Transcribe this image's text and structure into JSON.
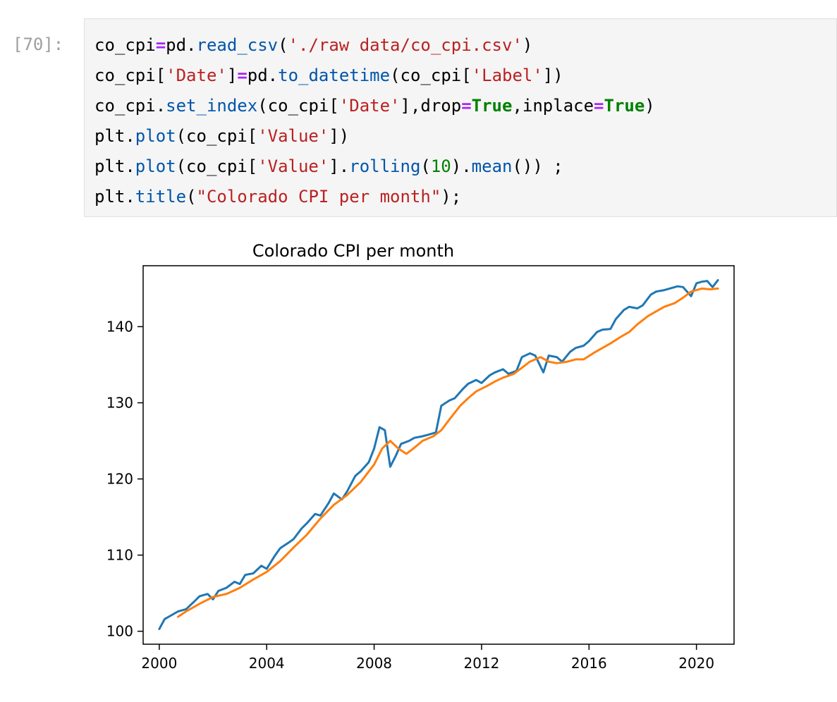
{
  "cell": {
    "prompt": "[70]:",
    "code_lines": [
      [
        {
          "t": "co_cpi",
          "c": ""
        },
        {
          "t": "=",
          "c": "op"
        },
        {
          "t": "pd.",
          "c": ""
        },
        {
          "t": "read_csv",
          "c": "fn"
        },
        {
          "t": "(",
          "c": ""
        },
        {
          "t": "'./raw data/co_cpi.csv'",
          "c": "str"
        },
        {
          "t": ")",
          "c": ""
        }
      ],
      [
        {
          "t": "co_cpi[",
          "c": ""
        },
        {
          "t": "'Date'",
          "c": "str"
        },
        {
          "t": "]",
          "c": ""
        },
        {
          "t": "=",
          "c": "op"
        },
        {
          "t": "pd.",
          "c": ""
        },
        {
          "t": "to_datetime",
          "c": "fn"
        },
        {
          "t": "(co_cpi[",
          "c": ""
        },
        {
          "t": "'Label'",
          "c": "str"
        },
        {
          "t": "])",
          "c": ""
        }
      ],
      [
        {
          "t": "co_cpi.",
          "c": ""
        },
        {
          "t": "set_index",
          "c": "fn"
        },
        {
          "t": "(co_cpi[",
          "c": ""
        },
        {
          "t": "'Date'",
          "c": "str"
        },
        {
          "t": "],drop",
          "c": ""
        },
        {
          "t": "=",
          "c": "op"
        },
        {
          "t": "True",
          "c": "kw"
        },
        {
          "t": ",inplace",
          "c": ""
        },
        {
          "t": "=",
          "c": "op"
        },
        {
          "t": "True",
          "c": "kw"
        },
        {
          "t": ")",
          "c": ""
        }
      ],
      [
        {
          "t": "plt.",
          "c": ""
        },
        {
          "t": "plot",
          "c": "fn"
        },
        {
          "t": "(co_cpi[",
          "c": ""
        },
        {
          "t": "'Value'",
          "c": "str"
        },
        {
          "t": "])",
          "c": ""
        }
      ],
      [
        {
          "t": "plt.",
          "c": ""
        },
        {
          "t": "plot",
          "c": "fn"
        },
        {
          "t": "(co_cpi[",
          "c": ""
        },
        {
          "t": "'Value'",
          "c": "str"
        },
        {
          "t": "].",
          "c": ""
        },
        {
          "t": "rolling",
          "c": "fn"
        },
        {
          "t": "(",
          "c": ""
        },
        {
          "t": "10",
          "c": "num"
        },
        {
          "t": ").",
          "c": ""
        },
        {
          "t": "mean",
          "c": "fn"
        },
        {
          "t": "()) ;",
          "c": ""
        }
      ],
      [
        {
          "t": "plt.",
          "c": ""
        },
        {
          "t": "title",
          "c": "fn"
        },
        {
          "t": "(",
          "c": ""
        },
        {
          "t": "\"Colorado CPI per month\"",
          "c": "str"
        },
        {
          "t": ");",
          "c": ""
        }
      ]
    ]
  },
  "chart_data": {
    "type": "line",
    "title": "Colorado CPI per month",
    "xlabel": "",
    "ylabel": "",
    "xlim": [
      1999.4,
      2021.4
    ],
    "ylim": [
      98.3,
      148.0
    ],
    "x_ticks": [
      2000,
      2004,
      2008,
      2012,
      2016,
      2020
    ],
    "x_tick_labels": [
      "2000",
      "2004",
      "2008",
      "2012",
      "2016",
      "2020"
    ],
    "y_ticks": [
      100,
      110,
      120,
      130,
      140
    ],
    "y_tick_labels": [
      "100",
      "110",
      "120",
      "130",
      "140"
    ],
    "grid": false,
    "legend": "none",
    "series": [
      {
        "color": "#1f77b4",
        "x": [
          2000.0,
          2000.2,
          2000.4,
          2000.7,
          2001.0,
          2001.3,
          2001.5,
          2001.8,
          2002.0,
          2002.2,
          2002.5,
          2002.8,
          2003.0,
          2003.2,
          2003.5,
          2003.8,
          2004.0,
          2004.3,
          2004.5,
          2004.8,
          2005.0,
          2005.3,
          2005.5,
          2005.8,
          2006.0,
          2006.3,
          2006.5,
          2006.8,
          2007.0,
          2007.3,
          2007.5,
          2007.8,
          2008.0,
          2008.2,
          2008.4,
          2008.6,
          2008.8,
          2009.0,
          2009.3,
          2009.5,
          2009.8,
          2010.0,
          2010.3,
          2010.5,
          2010.8,
          2011.0,
          2011.3,
          2011.5,
          2011.8,
          2012.0,
          2012.3,
          2012.5,
          2012.8,
          2013.0,
          2013.3,
          2013.5,
          2013.8,
          2014.0,
          2014.3,
          2014.5,
          2014.8,
          2015.0,
          2015.3,
          2015.5,
          2015.8,
          2016.0,
          2016.3,
          2016.5,
          2016.8,
          2017.0,
          2017.3,
          2017.5,
          2017.8,
          2018.0,
          2018.3,
          2018.5,
          2018.8,
          2019.0,
          2019.3,
          2019.5,
          2019.8,
          2020.0,
          2020.2,
          2020.4,
          2020.6,
          2020.8
        ],
        "values": [
          100.3,
          101.6,
          102.0,
          102.6,
          102.9,
          103.9,
          104.6,
          104.9,
          104.2,
          105.3,
          105.7,
          106.5,
          106.2,
          107.4,
          107.6,
          108.6,
          108.2,
          109.9,
          110.9,
          111.6,
          112.1,
          113.5,
          114.2,
          115.4,
          115.2,
          116.8,
          118.1,
          117.3,
          118.4,
          120.4,
          121.0,
          122.2,
          124.0,
          126.8,
          126.4,
          121.6,
          123.0,
          124.6,
          125.0,
          125.4,
          125.6,
          125.8,
          126.1,
          129.6,
          130.3,
          130.6,
          131.8,
          132.5,
          133.0,
          132.6,
          133.6,
          134.0,
          134.4,
          133.8,
          134.2,
          136.0,
          136.5,
          136.2,
          134.0,
          136.2,
          136.0,
          135.4,
          136.7,
          137.2,
          137.5,
          138.1,
          139.3,
          139.6,
          139.7,
          141.0,
          142.2,
          142.6,
          142.4,
          142.8,
          144.2,
          144.6,
          144.8,
          145.0,
          145.3,
          145.2,
          144.0,
          145.7,
          145.9,
          146.0,
          145.2,
          146.1
        ]
      },
      {
        "color": "#ff7f0e",
        "x": [
          2000.7,
          2001.0,
          2001.5,
          2002.0,
          2002.5,
          2003.0,
          2003.5,
          2004.0,
          2004.5,
          2005.0,
          2005.5,
          2006.0,
          2006.5,
          2007.0,
          2007.5,
          2008.0,
          2008.3,
          2008.6,
          2008.9,
          2009.2,
          2009.5,
          2009.8,
          2010.2,
          2010.5,
          2010.8,
          2011.2,
          2011.5,
          2011.8,
          2012.2,
          2012.5,
          2012.8,
          2013.2,
          2013.5,
          2013.8,
          2014.2,
          2014.5,
          2014.8,
          2015.2,
          2015.5,
          2015.8,
          2016.2,
          2016.5,
          2016.8,
          2017.2,
          2017.5,
          2017.8,
          2018.2,
          2018.5,
          2018.8,
          2019.2,
          2019.5,
          2019.8,
          2020.2,
          2020.5,
          2020.8
        ],
        "values": [
          101.9,
          102.6,
          103.6,
          104.5,
          104.9,
          105.7,
          106.8,
          107.8,
          109.2,
          111.0,
          112.7,
          114.8,
          116.6,
          117.9,
          119.6,
          121.9,
          124.0,
          125.0,
          124.0,
          123.3,
          124.1,
          125.0,
          125.6,
          126.4,
          127.8,
          129.6,
          130.6,
          131.5,
          132.2,
          132.8,
          133.3,
          133.8,
          134.6,
          135.4,
          136.0,
          135.4,
          135.2,
          135.4,
          135.7,
          135.7,
          136.6,
          137.2,
          137.8,
          138.7,
          139.3,
          140.3,
          141.4,
          142.0,
          142.6,
          143.1,
          143.8,
          144.6,
          145.0,
          144.9,
          145.0
        ]
      }
    ]
  }
}
